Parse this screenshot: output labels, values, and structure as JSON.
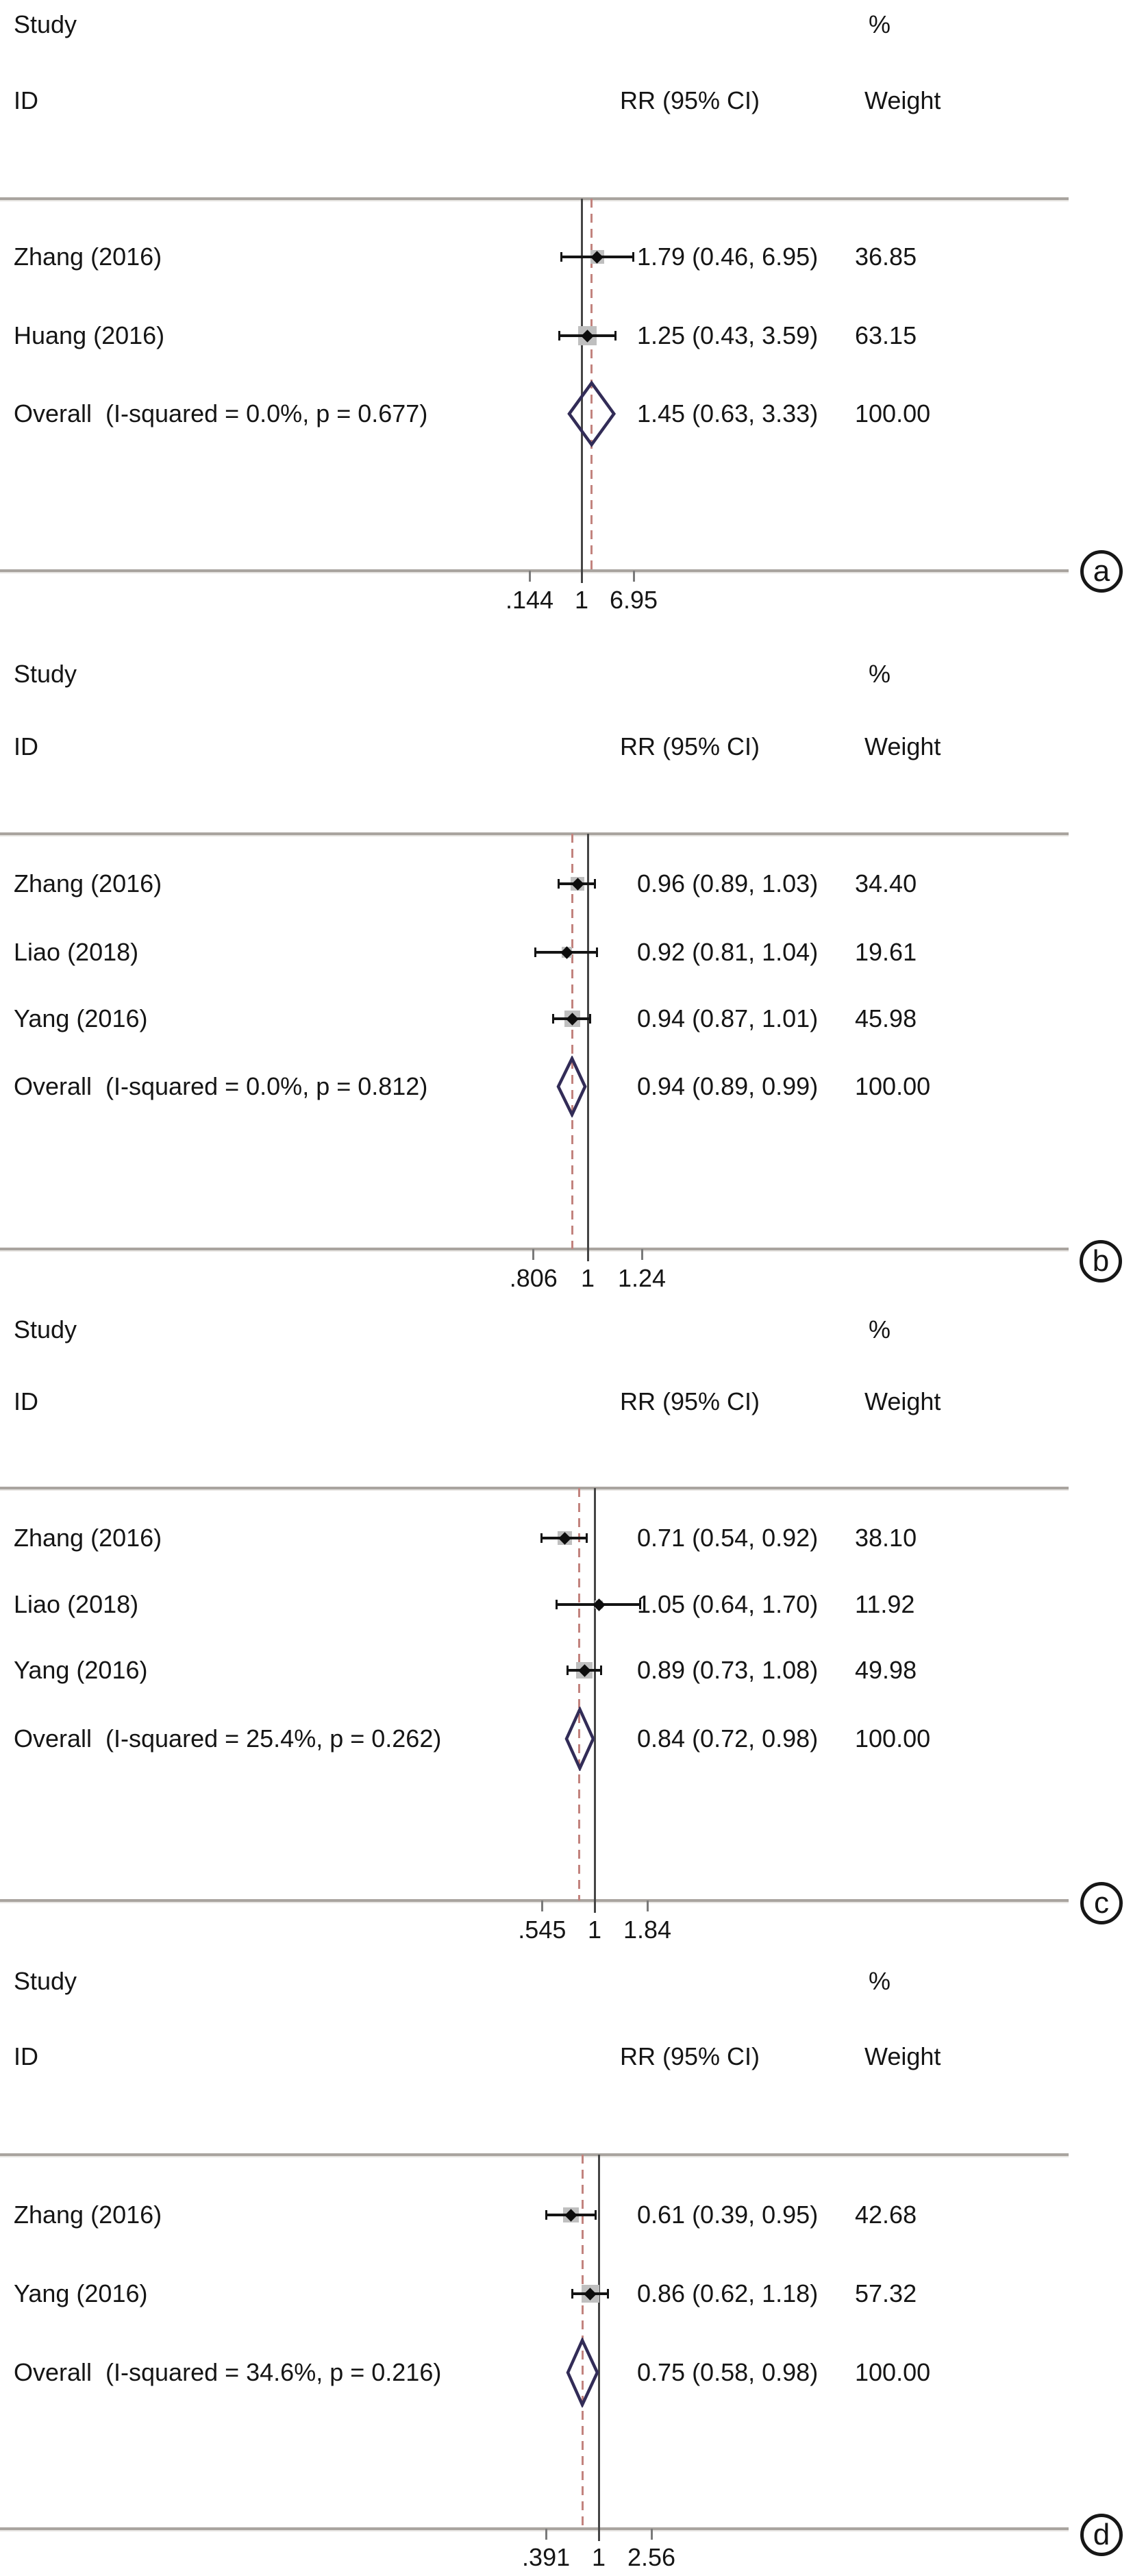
{
  "colors": {
    "diamond_outline": "#322c57",
    "overall_dashed_line": "#c2837e",
    "null_line": "#454545",
    "ci_line": "#141414",
    "weight_box": "#bfbfbf",
    "rule": "#a9a49f",
    "text": "#151515"
  },
  "chart_data": [
    {
      "type": "forest",
      "panel_label": "a",
      "columns": {
        "study": "Study",
        "id": "ID",
        "rr": "RR (95% CI)",
        "percent": "%",
        "weight": "Weight"
      },
      "x_axis": {
        "scale": "log",
        "tick_labels": [
          ".144",
          "1",
          "6.95"
        ],
        "tick_values": [
          0.144,
          1,
          6.95
        ]
      },
      "studies": [
        {
          "name": "Zhang (2016)",
          "rr": 1.79,
          "ci_low": 0.46,
          "ci_high": 6.95,
          "rr_text": "1.79 (0.46, 6.95)",
          "weight": 36.85,
          "weight_text": "36.85"
        },
        {
          "name": "Huang (2016)",
          "rr": 1.25,
          "ci_low": 0.43,
          "ci_high": 3.59,
          "rr_text": "1.25 (0.43, 3.59)",
          "weight": 63.15,
          "weight_text": "63.15"
        }
      ],
      "overall": {
        "name": "Overall  (I-squared = 0.0%, p = 0.677)",
        "i_squared": "0.0%",
        "p_value": "0.677",
        "rr": 1.45,
        "ci_low": 0.63,
        "ci_high": 3.33,
        "rr_text": "1.45 (0.63, 3.33)",
        "weight": 100.0,
        "weight_text": "100.00"
      }
    },
    {
      "type": "forest",
      "panel_label": "b",
      "columns": {
        "study": "Study",
        "id": "ID",
        "rr": "RR (95% CI)",
        "percent": "%",
        "weight": "Weight"
      },
      "x_axis": {
        "scale": "log",
        "tick_labels": [
          ".806",
          "1",
          "1.24"
        ],
        "tick_values": [
          0.806,
          1,
          1.24
        ]
      },
      "studies": [
        {
          "name": "Zhang (2016)",
          "rr": 0.96,
          "ci_low": 0.89,
          "ci_high": 1.03,
          "rr_text": "0.96 (0.89, 1.03)",
          "weight": 34.4,
          "weight_text": "34.40"
        },
        {
          "name": "Liao (2018)",
          "rr": 0.92,
          "ci_low": 0.81,
          "ci_high": 1.04,
          "rr_text": "0.92 (0.81, 1.04)",
          "weight": 19.61,
          "weight_text": "19.61"
        },
        {
          "name": "Yang (2016)",
          "rr": 0.94,
          "ci_low": 0.87,
          "ci_high": 1.01,
          "rr_text": "0.94 (0.87, 1.01)",
          "weight": 45.98,
          "weight_text": "45.98"
        }
      ],
      "overall": {
        "name": "Overall  (I-squared = 0.0%, p = 0.812)",
        "i_squared": "0.0%",
        "p_value": "0.812",
        "rr": 0.94,
        "ci_low": 0.89,
        "ci_high": 0.99,
        "rr_text": "0.94 (0.89, 0.99)",
        "weight": 100.0,
        "weight_text": "100.00"
      }
    },
    {
      "type": "forest",
      "panel_label": "c",
      "columns": {
        "study": "Study",
        "id": "ID",
        "rr": "RR (95% CI)",
        "percent": "%",
        "weight": "Weight"
      },
      "x_axis": {
        "scale": "log",
        "tick_labels": [
          ".545",
          "1",
          "1.84"
        ],
        "tick_values": [
          0.545,
          1,
          1.84
        ]
      },
      "studies": [
        {
          "name": "Zhang (2016)",
          "rr": 0.71,
          "ci_low": 0.54,
          "ci_high": 0.92,
          "rr_text": "0.71 (0.54, 0.92)",
          "weight": 38.1,
          "weight_text": "38.10"
        },
        {
          "name": "Liao (2018)",
          "rr": 1.05,
          "ci_low": 0.64,
          "ci_high": 1.7,
          "rr_text": "1.05 (0.64, 1.70)",
          "weight": 11.92,
          "weight_text": "11.92"
        },
        {
          "name": "Yang (2016)",
          "rr": 0.89,
          "ci_low": 0.73,
          "ci_high": 1.08,
          "rr_text": "0.89 (0.73, 1.08)",
          "weight": 49.98,
          "weight_text": "49.98"
        }
      ],
      "overall": {
        "name": "Overall  (I-squared = 25.4%, p = 0.262)",
        "i_squared": "25.4%",
        "p_value": "0.262",
        "rr": 0.84,
        "ci_low": 0.72,
        "ci_high": 0.98,
        "rr_text": "0.84 (0.72, 0.98)",
        "weight": 100.0,
        "weight_text": "100.00"
      }
    },
    {
      "type": "forest",
      "panel_label": "d",
      "columns": {
        "study": "Study",
        "id": "ID",
        "rr": "RR (95% CI)",
        "percent": "%",
        "weight": "Weight"
      },
      "x_axis": {
        "scale": "log",
        "tick_labels": [
          ".391",
          "1",
          "2.56"
        ],
        "tick_values": [
          0.391,
          1,
          2.56
        ]
      },
      "studies": [
        {
          "name": "Zhang (2016)",
          "rr": 0.61,
          "ci_low": 0.39,
          "ci_high": 0.95,
          "rr_text": "0.61 (0.39, 0.95)",
          "weight": 42.68,
          "weight_text": "42.68"
        },
        {
          "name": "Yang (2016)",
          "rr": 0.86,
          "ci_low": 0.62,
          "ci_high": 1.18,
          "rr_text": "0.86 (0.62, 1.18)",
          "weight": 57.32,
          "weight_text": "57.32"
        }
      ],
      "overall": {
        "name": "Overall  (I-squared = 34.6%, p = 0.216)",
        "i_squared": "34.6%",
        "p_value": "0.216",
        "rr": 0.75,
        "ci_low": 0.58,
        "ci_high": 0.98,
        "rr_text": "0.75 (0.58, 0.98)",
        "weight": 100.0,
        "weight_text": "100.00"
      }
    }
  ]
}
